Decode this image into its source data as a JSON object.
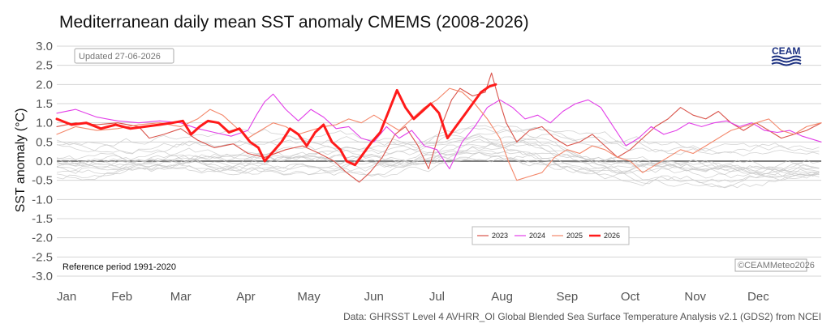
{
  "chart_data": {
    "type": "line",
    "title": "Mediterranean daily mean SST anomaly CMEMS (2008-2026)",
    "ylabel": "SST anomaly (°C)",
    "xlabel": "",
    "ylim": [
      -3.0,
      3.0
    ],
    "yticks": [
      "3.0",
      "2.5",
      "2.0",
      "1.5",
      "1.0",
      "0.5",
      "0.0",
      "-0.5",
      "-1.0",
      "-1.5",
      "-2.0",
      "-2.5",
      "-3.0"
    ],
    "months": [
      "Jan",
      "Feb",
      "Mar",
      "Apr",
      "May",
      "Jun",
      "Jul",
      "Aug",
      "Sep",
      "Oct",
      "Nov",
      "Dec"
    ],
    "x_unit": "day of year",
    "grid": true,
    "legend_position": "bottom-center",
    "updated_label": "Updated 27-06-2026",
    "reference_label": "Reference period 1991-2020",
    "copyright_label": "©CEAMMeteo2026",
    "source_caption": "Data: GHRSST Level 4 AVHRR_OI Global Blended Sea Surface Temperature Analysis v2.1 (GDS2) from NCEI",
    "logo_text": "CEAM",
    "background_series_color": "#c8c8c8",
    "series": [
      {
        "name": "2023",
        "color": "#d9534a",
        "width": 1.1,
        "points": [
          [
            1,
            0.9
          ],
          [
            10,
            1.0
          ],
          [
            20,
            0.95
          ],
          [
            30,
            1.0
          ],
          [
            40,
            0.9
          ],
          [
            45,
            0.6
          ],
          [
            52,
            0.7
          ],
          [
            60,
            0.85
          ],
          [
            68,
            0.55
          ],
          [
            76,
            0.35
          ],
          [
            85,
            0.45
          ],
          [
            92,
            0.2
          ],
          [
            100,
            0.1
          ],
          [
            110,
            0.3
          ],
          [
            118,
            0.4
          ],
          [
            126,
            0.2
          ],
          [
            133,
            0.0
          ],
          [
            139,
            -0.3
          ],
          [
            145,
            -0.55
          ],
          [
            150,
            -0.3
          ],
          [
            156,
            0.1
          ],
          [
            162,
            0.7
          ],
          [
            167,
            0.9
          ],
          [
            173,
            0.4
          ],
          [
            178,
            -0.2
          ],
          [
            184,
            0.9
          ],
          [
            189,
            1.6
          ],
          [
            193,
            1.9
          ],
          [
            199,
            1.7
          ],
          [
            205,
            1.8
          ],
          [
            208,
            2.3
          ],
          [
            211,
            1.7
          ],
          [
            215,
            1.0
          ],
          [
            220,
            0.5
          ],
          [
            226,
            0.8
          ],
          [
            232,
            0.9
          ],
          [
            238,
            0.6
          ],
          [
            244,
            0.4
          ],
          [
            250,
            0.5
          ],
          [
            256,
            0.7
          ],
          [
            262,
            0.4
          ],
          [
            268,
            0.1
          ],
          [
            274,
            0.3
          ],
          [
            280,
            0.6
          ],
          [
            286,
            0.9
          ],
          [
            292,
            1.1
          ],
          [
            298,
            1.4
          ],
          [
            304,
            1.2
          ],
          [
            310,
            1.1
          ],
          [
            316,
            1.3
          ],
          [
            322,
            1.0
          ],
          [
            328,
            0.8
          ],
          [
            334,
            1.0
          ],
          [
            340,
            0.8
          ],
          [
            346,
            0.6
          ],
          [
            352,
            0.7
          ],
          [
            358,
            0.8
          ],
          [
            365,
            1.0
          ]
        ]
      },
      {
        "name": "2024",
        "color": "#e23fe8",
        "width": 1.1,
        "points": [
          [
            1,
            1.25
          ],
          [
            10,
            1.35
          ],
          [
            20,
            1.15
          ],
          [
            30,
            1.05
          ],
          [
            40,
            1.0
          ],
          [
            50,
            1.05
          ],
          [
            60,
            1.0
          ],
          [
            68,
            0.85
          ],
          [
            76,
            0.75
          ],
          [
            84,
            0.65
          ],
          [
            92,
            0.8
          ],
          [
            96,
            1.2
          ],
          [
            100,
            1.55
          ],
          [
            104,
            1.75
          ],
          [
            110,
            1.35
          ],
          [
            116,
            1.05
          ],
          [
            122,
            1.35
          ],
          [
            128,
            1.15
          ],
          [
            134,
            0.85
          ],
          [
            140,
            0.9
          ],
          [
            146,
            0.6
          ],
          [
            152,
            0.5
          ],
          [
            158,
            0.9
          ],
          [
            164,
            0.6
          ],
          [
            170,
            0.8
          ],
          [
            176,
            0.4
          ],
          [
            182,
            0.3
          ],
          [
            188,
            -0.2
          ],
          [
            194,
            0.5
          ],
          [
            200,
            0.9
          ],
          [
            206,
            1.4
          ],
          [
            212,
            1.6
          ],
          [
            218,
            1.4
          ],
          [
            224,
            1.1
          ],
          [
            230,
            1.2
          ],
          [
            236,
            1.0
          ],
          [
            242,
            1.3
          ],
          [
            248,
            1.5
          ],
          [
            254,
            1.6
          ],
          [
            260,
            1.4
          ],
          [
            266,
            0.9
          ],
          [
            272,
            0.4
          ],
          [
            278,
            0.6
          ],
          [
            284,
            0.9
          ],
          [
            290,
            0.7
          ],
          [
            296,
            0.8
          ],
          [
            302,
            1.0
          ],
          [
            308,
            0.9
          ],
          [
            314,
            1.0
          ],
          [
            320,
            1.05
          ],
          [
            326,
            0.9
          ],
          [
            332,
            1.0
          ],
          [
            338,
            0.8
          ],
          [
            344,
            0.75
          ],
          [
            350,
            0.8
          ],
          [
            356,
            0.65
          ],
          [
            365,
            0.5
          ]
        ]
      },
      {
        "name": "2025",
        "color": "#f4876a",
        "width": 1.1,
        "points": [
          [
            1,
            0.7
          ],
          [
            10,
            0.9
          ],
          [
            20,
            0.8
          ],
          [
            30,
            0.85
          ],
          [
            40,
            0.95
          ],
          [
            50,
            1.0
          ],
          [
            60,
            0.9
          ],
          [
            68,
            1.1
          ],
          [
            74,
            1.35
          ],
          [
            80,
            1.2
          ],
          [
            86,
            0.9
          ],
          [
            92,
            0.6
          ],
          [
            98,
            0.8
          ],
          [
            104,
            1.0
          ],
          [
            110,
            0.9
          ],
          [
            116,
            0.7
          ],
          [
            122,
            0.8
          ],
          [
            128,
            0.9
          ],
          [
            134,
            0.95
          ],
          [
            140,
            1.1
          ],
          [
            146,
            1.0
          ],
          [
            152,
            1.2
          ],
          [
            158,
            1.0
          ],
          [
            164,
            0.8
          ],
          [
            170,
            1.1
          ],
          [
            176,
            1.4
          ],
          [
            182,
            1.6
          ],
          [
            188,
            1.9
          ],
          [
            194,
            1.8
          ],
          [
            200,
            1.5
          ],
          [
            206,
            1.1
          ],
          [
            212,
            0.6
          ],
          [
            216,
            0.0
          ],
          [
            220,
            -0.5
          ],
          [
            226,
            -0.4
          ],
          [
            232,
            -0.3
          ],
          [
            238,
            0.1
          ],
          [
            244,
            0.3
          ],
          [
            250,
            0.2
          ],
          [
            256,
            0.4
          ],
          [
            262,
            0.3
          ],
          [
            268,
            0.1
          ],
          [
            274,
            0.0
          ],
          [
            280,
            -0.3
          ],
          [
            286,
            -0.1
          ],
          [
            292,
            0.1
          ],
          [
            298,
            0.3
          ],
          [
            304,
            0.2
          ],
          [
            310,
            0.4
          ],
          [
            316,
            0.6
          ],
          [
            322,
            0.8
          ],
          [
            328,
            0.9
          ],
          [
            334,
            1.0
          ],
          [
            340,
            1.1
          ],
          [
            346,
            0.8
          ],
          [
            352,
            0.7
          ],
          [
            358,
            0.9
          ],
          [
            365,
            1.0
          ]
        ]
      },
      {
        "name": "2026",
        "color": "#ff1a1a",
        "width": 3.0,
        "points": [
          [
            1,
            1.1
          ],
          [
            8,
            0.95
          ],
          [
            15,
            1.0
          ],
          [
            22,
            0.85
          ],
          [
            29,
            0.95
          ],
          [
            36,
            0.85
          ],
          [
            43,
            0.9
          ],
          [
            50,
            0.95
          ],
          [
            56,
            1.0
          ],
          [
            61,
            1.05
          ],
          [
            65,
            0.7
          ],
          [
            69,
            0.9
          ],
          [
            73,
            1.05
          ],
          [
            78,
            1.0
          ],
          [
            83,
            0.75
          ],
          [
            88,
            0.85
          ],
          [
            93,
            0.5
          ],
          [
            97,
            0.35
          ],
          [
            100,
            0.0
          ],
          [
            104,
            0.25
          ],
          [
            108,
            0.5
          ],
          [
            112,
            0.85
          ],
          [
            116,
            0.7
          ],
          [
            120,
            0.4
          ],
          [
            124,
            0.75
          ],
          [
            128,
            0.95
          ],
          [
            132,
            0.5
          ],
          [
            136,
            0.3
          ],
          [
            139,
            0.0
          ],
          [
            143,
            -0.1
          ],
          [
            147,
            0.2
          ],
          [
            151,
            0.5
          ],
          [
            155,
            0.75
          ],
          [
            159,
            1.3
          ],
          [
            163,
            1.85
          ],
          [
            167,
            1.4
          ],
          [
            171,
            1.1
          ],
          [
            175,
            1.3
          ],
          [
            179,
            1.5
          ],
          [
            183,
            1.25
          ],
          [
            187,
            0.6
          ],
          [
            191,
            0.9
          ],
          [
            195,
            1.2
          ],
          [
            199,
            1.5
          ],
          [
            203,
            1.8
          ],
          [
            207,
            1.95
          ],
          [
            210,
            2.0
          ]
        ]
      }
    ]
  }
}
